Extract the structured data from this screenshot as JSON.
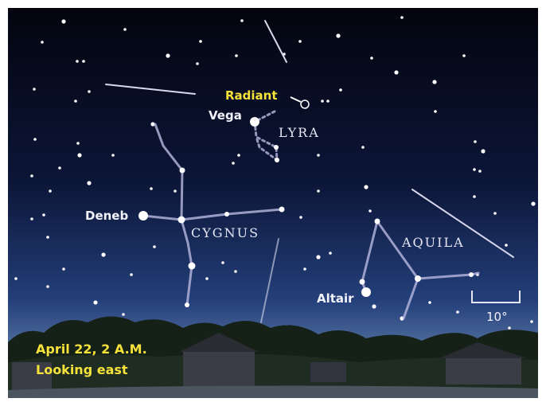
{
  "labels": {
    "radiant": "Radiant",
    "vega": "Vega",
    "lyra": "LYRA",
    "deneb": "Deneb",
    "cygnus": "CYGNUS",
    "aquila": "AQUILA",
    "altair": "Altair"
  },
  "scale": "10°",
  "caption": {
    "date": "April 22, 2 A.M.",
    "direction": "Looking east"
  }
}
